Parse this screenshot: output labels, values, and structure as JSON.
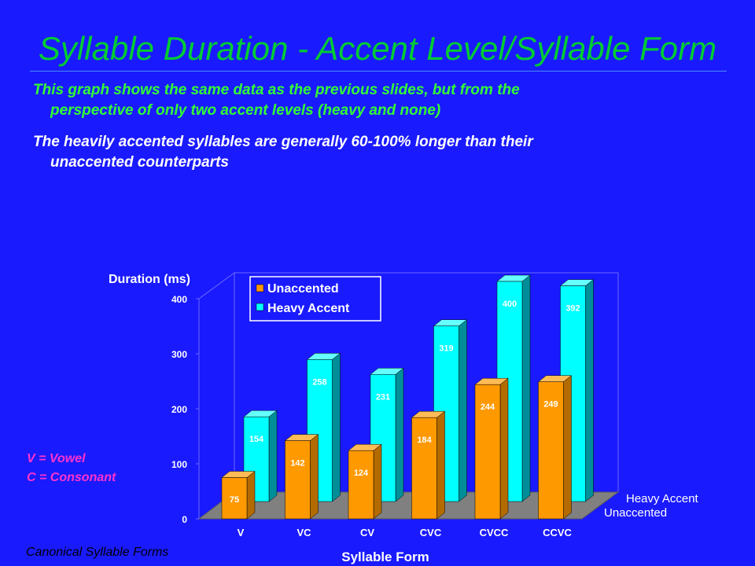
{
  "slide": {
    "title": "Syllable Duration - Accent Level/Syllable Form",
    "bullet1_line1": "This graph shows the same data as the previous slides, but from the",
    "bullet1_line2": "perspective of only two accent levels (heavy and none)",
    "bullet2_line1": "The heavily accented syllables are generally 60-100% longer than their",
    "bullet2_line2": "unaccented counterparts",
    "note_vowel": "V = Vowel",
    "note_consonant": "C = Consonant",
    "footer": "Canonical Syllable Forms"
  },
  "chart_data": {
    "type": "bar",
    "ylabel": "Duration (ms)",
    "xlabel": "Syllable Form",
    "categories": [
      "V",
      "VC",
      "CV",
      "CVC",
      "CVCC",
      "CCVC"
    ],
    "yticks": [
      0,
      100,
      200,
      300,
      400
    ],
    "ylim": [
      0,
      400
    ],
    "series": [
      {
        "name": "Unaccented",
        "values": [
          75,
          142,
          124,
          184,
          244,
          249
        ],
        "color": "#ff9900"
      },
      {
        "name": "Heavy Accent",
        "values": [
          154,
          258,
          231,
          319,
          400,
          392
        ],
        "color": "#00ffff"
      }
    ],
    "depth_axis_labels": [
      "Heavy Accent",
      "Unaccented"
    ],
    "legend_position": "top-left"
  }
}
